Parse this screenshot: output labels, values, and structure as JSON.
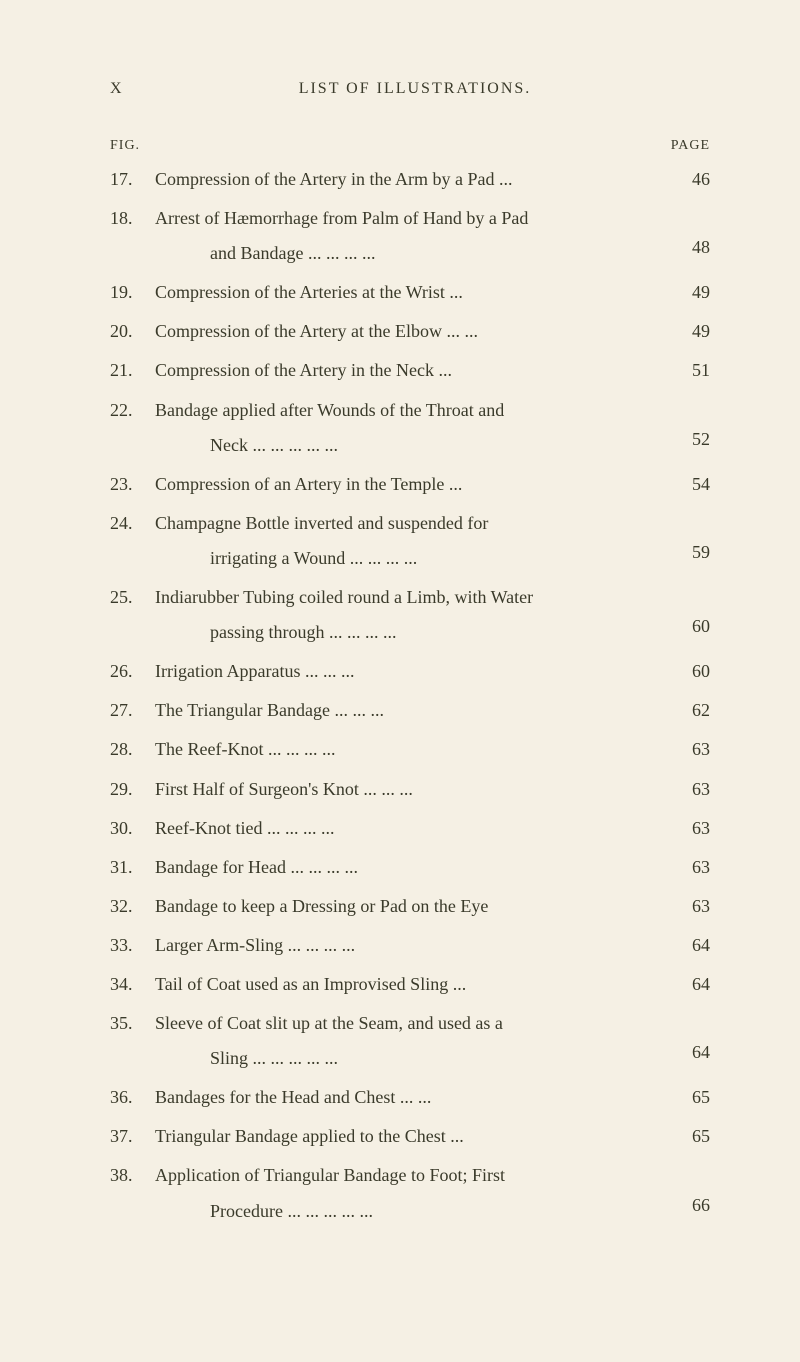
{
  "header": {
    "pageNumeral": "X",
    "title": "LIST OF ILLUSTRATIONS."
  },
  "labels": {
    "fig": "FIG.",
    "page": "PAGE"
  },
  "entries": [
    {
      "num": "17.",
      "text": "Compression of the Artery in the Arm by a Pad",
      "trail": "...",
      "page": "46"
    },
    {
      "num": "18.",
      "text": "Arrest of Hæmorrhage from Palm of Hand by a Pad",
      "cont": "and Bandage",
      "trail": "...       ...       ...       ...",
      "page": "48"
    },
    {
      "num": "19.",
      "text": "Compression of the Arteries at the Wrist",
      "trail": "...",
      "page": "49"
    },
    {
      "num": "20.",
      "text": "Compression of the Artery at the Elbow ...",
      "trail": "...",
      "page": "49"
    },
    {
      "num": "21.",
      "text": "Compression of the Artery in the Neck",
      "trail": "...",
      "page": "51"
    },
    {
      "num": "22.",
      "text": "Bandage applied after Wounds of the Throat and",
      "cont": "Neck ...       ...       ...       ...",
      "trail": "...",
      "page": "52"
    },
    {
      "num": "23.",
      "text": "Compression of an Artery in the Temple",
      "trail": "...",
      "page": "54"
    },
    {
      "num": "24.",
      "text": "Champagne Bottle inverted and suspended for",
      "cont": "irrigating a Wound ...       ...       ...",
      "trail": "...",
      "page": "59"
    },
    {
      "num": "25.",
      "text": "Indiarubber Tubing coiled round a Limb, with Water",
      "cont": "passing through       ...       ...       ...",
      "trail": "...",
      "page": "60"
    },
    {
      "num": "26.",
      "text": "Irrigation Apparatus       ...       ...",
      "trail": "...",
      "page": "60"
    },
    {
      "num": "27.",
      "text": "The Triangular Bandage       ...       ...",
      "trail": "...",
      "page": "62"
    },
    {
      "num": "28.",
      "text": "The Reef-Knot       ...       ...       ...",
      "trail": "...",
      "page": "63"
    },
    {
      "num": "29.",
      "text": "First Half of Surgeon's Knot       ...       ...",
      "trail": "...",
      "page": "63"
    },
    {
      "num": "30.",
      "text": "Reef-Knot tied       ...       ...       ...",
      "trail": "...",
      "page": "63"
    },
    {
      "num": "31.",
      "text": "Bandage for Head       ...       ...       ...",
      "trail": "...",
      "page": "63"
    },
    {
      "num": "32.",
      "text": "Bandage to keep a Dressing or Pad on the Eye",
      "trail": "",
      "page": "63"
    },
    {
      "num": "33.",
      "text": "Larger Arm-Sling       ...       ...       ...",
      "trail": "...",
      "page": "64"
    },
    {
      "num": "34.",
      "text": "Tail of Coat used as an Improvised Sling",
      "trail": "...",
      "page": "64"
    },
    {
      "num": "35.",
      "text": "Sleeve of Coat slit up at the Seam, and used as a",
      "cont": "Sling       ...       ...       ...       ...",
      "trail": "...",
      "page": "64"
    },
    {
      "num": "36.",
      "text": "Bandages for the Head and Chest       ...",
      "trail": "...",
      "page": "65"
    },
    {
      "num": "37.",
      "text": "Triangular Bandage applied to the Chest",
      "trail": "...",
      "page": "65"
    },
    {
      "num": "38.",
      "text": "Application of Triangular Bandage to Foot; First",
      "cont": "Procedure ...       ...       ...       ...",
      "trail": "...",
      "page": "66"
    }
  ]
}
